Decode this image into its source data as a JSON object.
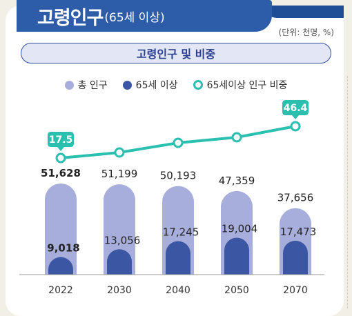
{
  "header": {
    "title_main": "고령인구",
    "title_sub": "(65세 이상)",
    "unit": "(단위: 천명, %)",
    "subtitle": "고령인구 및 비중"
  },
  "legend": [
    {
      "label": "총 인구",
      "color": "#a8aedb"
    },
    {
      "label": "65세 이상",
      "color": "#3b56a3"
    },
    {
      "label": "65세이상 인구 비중",
      "color": "#2bbfb0"
    }
  ],
  "chart_data": {
    "type": "bar",
    "title": "고령인구 및 비중",
    "categories": [
      "2022",
      "2030",
      "2040",
      "2050",
      "2070"
    ],
    "series": [
      {
        "name": "총 인구",
        "values": [
          51628,
          51199,
          50193,
          47359,
          37656
        ],
        "labels": [
          "51,628",
          "51,199",
          "50,193",
          "47,359",
          "37,656"
        ],
        "color": "#a8aedb"
      },
      {
        "name": "65세 이상",
        "values": [
          9018,
          13056,
          17245,
          19004,
          17473
        ],
        "labels": [
          "9,018",
          "13,056",
          "17,245",
          "19,004",
          "17,473"
        ],
        "color": "#3b56a3"
      },
      {
        "name": "65세이상 인구 비중",
        "type": "line",
        "values": [
          17.5,
          null,
          null,
          null,
          46.4
        ],
        "labels": [
          "17.5",
          "",
          "",
          "",
          "46.4"
        ],
        "color": "#2bbfb0"
      }
    ],
    "legend_position": "top",
    "grid": false
  }
}
